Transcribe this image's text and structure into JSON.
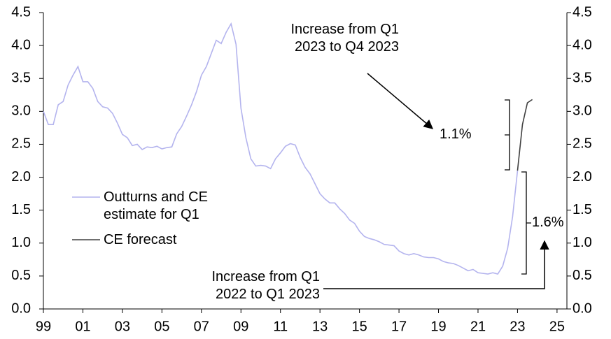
{
  "chart_data": {
    "type": "line",
    "series": [
      {
        "name": "Outturns and CE estimate for Q1",
        "color": "#b4b4ee",
        "x": [
          1999,
          1999.25,
          1999.5,
          1999.75,
          2000,
          2000.25,
          2000.5,
          2000.75,
          2001,
          2001.25,
          2001.5,
          2001.75,
          2002,
          2002.25,
          2002.5,
          2002.75,
          2003,
          2003.25,
          2003.5,
          2003.75,
          2004,
          2004.25,
          2004.5,
          2004.75,
          2005,
          2005.25,
          2005.5,
          2005.75,
          2006,
          2006.25,
          2006.5,
          2006.75,
          2007,
          2007.25,
          2007.5,
          2007.75,
          2008,
          2008.25,
          2008.5,
          2008.75,
          2009,
          2009.25,
          2009.5,
          2009.75,
          2010,
          2010.25,
          2010.5,
          2010.75,
          2011,
          2011.25,
          2011.5,
          2011.75,
          2012,
          2012.25,
          2012.5,
          2012.75,
          2013,
          2013.25,
          2013.5,
          2013.75,
          2014,
          2014.25,
          2014.5,
          2014.75,
          2015,
          2015.25,
          2015.5,
          2015.75,
          2016,
          2016.25,
          2016.5,
          2016.75,
          2017,
          2017.25,
          2017.5,
          2017.75,
          2018,
          2018.25,
          2018.5,
          2018.75,
          2019,
          2019.25,
          2019.5,
          2019.75,
          2020,
          2020.25,
          2020.5,
          2020.75,
          2021,
          2021.25,
          2021.5,
          2021.75,
          2022,
          2022.25,
          2022.5,
          2022.75,
          2023
        ],
        "values": [
          3.0,
          2.8,
          2.8,
          3.1,
          3.15,
          3.4,
          3.55,
          3.68,
          3.45,
          3.45,
          3.35,
          3.15,
          3.07,
          3.05,
          2.97,
          2.82,
          2.65,
          2.6,
          2.48,
          2.5,
          2.42,
          2.46,
          2.45,
          2.47,
          2.43,
          2.45,
          2.46,
          2.66,
          2.77,
          2.93,
          3.1,
          3.3,
          3.55,
          3.68,
          3.88,
          4.08,
          4.03,
          4.2,
          4.33,
          4.02,
          3.05,
          2.6,
          2.28,
          2.17,
          2.18,
          2.17,
          2.13,
          2.28,
          2.37,
          2.47,
          2.51,
          2.49,
          2.3,
          2.15,
          2.05,
          1.9,
          1.75,
          1.67,
          1.61,
          1.61,
          1.52,
          1.45,
          1.35,
          1.3,
          1.18,
          1.1,
          1.07,
          1.05,
          1.02,
          0.98,
          0.97,
          0.96,
          0.88,
          0.84,
          0.82,
          0.84,
          0.82,
          0.79,
          0.78,
          0.78,
          0.76,
          0.72,
          0.7,
          0.69,
          0.66,
          0.62,
          0.58,
          0.6,
          0.55,
          0.54,
          0.53,
          0.55,
          0.53,
          0.65,
          0.92,
          1.4,
          2.1
        ]
      },
      {
        "name": "CE forecast",
        "color": "#404040",
        "x": [
          2023,
          2023.25,
          2023.5,
          2023.75
        ],
        "values": [
          2.1,
          2.8,
          3.13,
          3.18
        ]
      }
    ],
    "xlim": [
      1999,
      2025.5
    ],
    "xticks": [
      {
        "value": 1999,
        "label": "99"
      },
      {
        "value": 2001,
        "label": "01"
      },
      {
        "value": 2003,
        "label": "03"
      },
      {
        "value": 2005,
        "label": "05"
      },
      {
        "value": 2007,
        "label": "07"
      },
      {
        "value": 2009,
        "label": "09"
      },
      {
        "value": 2011,
        "label": "11"
      },
      {
        "value": 2013,
        "label": "13"
      },
      {
        "value": 2015,
        "label": "15"
      },
      {
        "value": 2017,
        "label": "17"
      },
      {
        "value": 2019,
        "label": "19"
      },
      {
        "value": 2021,
        "label": "21"
      },
      {
        "value": 2023,
        "label": "23"
      },
      {
        "value": 2025,
        "label": "25"
      }
    ],
    "ylim": [
      0,
      4.5
    ],
    "yticks": [
      {
        "value": 0,
        "label": "0.0"
      },
      0.5,
      {
        "value": 1,
        "label": "1.0"
      },
      1.5,
      {
        "value": 2,
        "label": "2.0"
      },
      2.5,
      {
        "value": 3,
        "label": "3.0"
      },
      3.5,
      {
        "value": 4,
        "label": "4.0"
      },
      4.5
    ],
    "y2lim": [
      0,
      4.5
    ],
    "y2ticks": [
      {
        "value": 0,
        "label": "0.0"
      },
      0.5,
      {
        "value": 1,
        "label": "1.0"
      },
      1.5,
      {
        "value": 2,
        "label": "2.0"
      },
      2.5,
      {
        "value": 3,
        "label": "3.0"
      },
      3.5,
      {
        "value": 4,
        "label": "4.0"
      },
      4.5
    ],
    "annotations": [
      "Increase from Q1 2023 to Q4 2023",
      "1.1%",
      "1.6%",
      "Increase from Q1 2022 to Q1 2023"
    ]
  }
}
